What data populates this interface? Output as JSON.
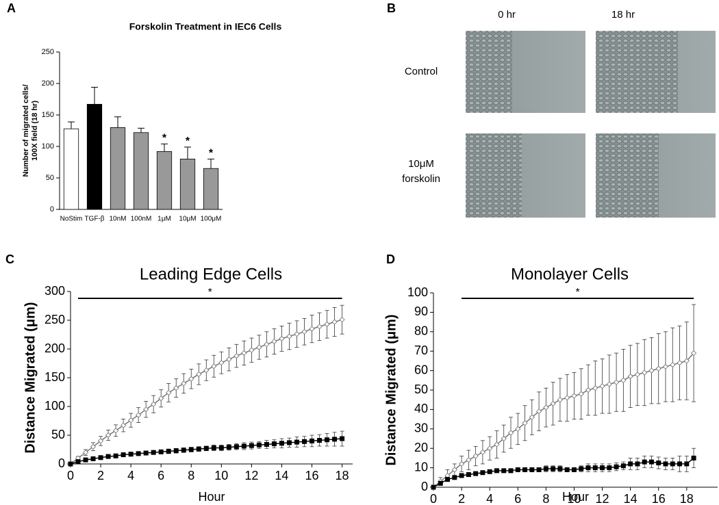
{
  "chart_data": [
    {
      "type": "bar",
      "panel": "A",
      "title": "Forskolin Treatment in IEC6 Cells",
      "ylabel": [
        "Number of migrated cells/",
        "100X field (18 hr)"
      ],
      "categories": [
        "NoStim",
        "TGF-β",
        "10nM",
        "100nM",
        "1μM",
        "10μM",
        "100μM"
      ],
      "values": [
        128,
        167,
        130,
        122,
        92,
        80,
        65
      ],
      "errors": [
        11,
        27,
        17,
        7,
        12,
        19,
        15
      ],
      "colors": [
        "#ffffff",
        "#000000",
        "#999999",
        "#999999",
        "#999999",
        "#999999",
        "#999999"
      ],
      "ylim": [
        0,
        250
      ],
      "yticks": [
        0,
        50,
        100,
        150,
        200,
        250
      ],
      "annotations": [
        {
          "text": "*",
          "category": "1μM"
        },
        {
          "text": "*",
          "category": "10μM"
        },
        {
          "text": "*",
          "category": "100μM"
        }
      ]
    },
    {
      "type": "line",
      "panel": "C",
      "title": "Leading Edge Cells",
      "xlabel": "Hour",
      "ylabel": "Distance Migrated (μm)",
      "x": [
        0,
        0.5,
        1,
        1.5,
        2,
        2.5,
        3,
        3.5,
        4,
        4.5,
        5,
        5.5,
        6,
        6.5,
        7,
        7.5,
        8,
        8.5,
        9,
        9.5,
        10,
        10.5,
        11,
        11.5,
        12,
        12.5,
        13,
        13.5,
        14,
        14.5,
        15,
        15.5,
        16,
        16.5,
        17,
        17.5,
        18
      ],
      "series": [
        {
          "color": "#777777",
          "marker": "diamond",
          "values": [
            0,
            10,
            20,
            30,
            40,
            50,
            58,
            67,
            76,
            85,
            95,
            104,
            114,
            124,
            132,
            140,
            148,
            156,
            163,
            170,
            176,
            182,
            188,
            193,
            198,
            203,
            208,
            213,
            218,
            222,
            226,
            230,
            235,
            239,
            243,
            247,
            251
          ],
          "errors": [
            0,
            3,
            5,
            7,
            8,
            9,
            10,
            11,
            12,
            13,
            14,
            15,
            15,
            16,
            16,
            17,
            17,
            18,
            18,
            19,
            19,
            20,
            20,
            21,
            21,
            21,
            22,
            22,
            22,
            23,
            23,
            23,
            24,
            24,
            24,
            25,
            25
          ]
        },
        {
          "color": "#000000",
          "marker": "square",
          "values": [
            0,
            4,
            7,
            9,
            11,
            13,
            14,
            16,
            17,
            18,
            19,
            20,
            21,
            22,
            23,
            24,
            25,
            26,
            27,
            28,
            28,
            29,
            30,
            31,
            32,
            33,
            34,
            35,
            36,
            37,
            38,
            39,
            40,
            41,
            42,
            43,
            44
          ],
          "errors": [
            0,
            1,
            1,
            2,
            2,
            2,
            2,
            3,
            3,
            3,
            3,
            3,
            3,
            4,
            4,
            4,
            4,
            4,
            4,
            5,
            5,
            5,
            5,
            6,
            6,
            6,
            7,
            7,
            8,
            8,
            9,
            9,
            10,
            10,
            11,
            12,
            13
          ]
        }
      ],
      "xlim": [
        0,
        18.7
      ],
      "xticks": [
        0,
        2,
        4,
        6,
        8,
        10,
        12,
        14,
        16,
        18
      ],
      "ylim": [
        0,
        300
      ],
      "yticks": [
        0,
        50,
        100,
        150,
        200,
        250,
        300
      ],
      "annotations": [
        {
          "text": "*",
          "x": [
            0.5,
            18
          ]
        }
      ]
    },
    {
      "type": "line",
      "panel": "D",
      "title": "Monolayer Cells",
      "xlabel": "Hour",
      "ylabel": "Distance Migrated (μm)",
      "x": [
        0,
        0.5,
        1,
        1.5,
        2,
        2.5,
        3,
        3.5,
        4,
        4.5,
        5,
        5.5,
        6,
        6.5,
        7,
        7.5,
        8,
        8.5,
        9,
        9.5,
        10,
        10.5,
        11,
        11.5,
        12,
        12.5,
        13,
        13.5,
        14,
        14.5,
        15,
        15.5,
        16,
        16.5,
        17,
        17.5,
        18,
        18.5
      ],
      "series": [
        {
          "color": "#777777",
          "marker": "diamond",
          "values": [
            0,
            3,
            6,
            9,
            12,
            14,
            16,
            18,
            20,
            22,
            25,
            28,
            30,
            33,
            36,
            39,
            41,
            43,
            45,
            46,
            47,
            48,
            50,
            51,
            52,
            53,
            54,
            55,
            57,
            58,
            59,
            60,
            61,
            62,
            63,
            64,
            65,
            69
          ],
          "errors": [
            0,
            2,
            3,
            3,
            4,
            5,
            5,
            6,
            6,
            7,
            7,
            8,
            8,
            9,
            9,
            10,
            10,
            11,
            11,
            12,
            12,
            13,
            13,
            14,
            14,
            15,
            15,
            16,
            16,
            16,
            17,
            17,
            18,
            18,
            19,
            19,
            20,
            25
          ]
        },
        {
          "color": "#000000",
          "marker": "square",
          "values": [
            0,
            2,
            4,
            5,
            6,
            6.5,
            7,
            7.5,
            8,
            8.5,
            8.5,
            8.5,
            9,
            9,
            9,
            9,
            9.5,
            9.5,
            9.5,
            9,
            9,
            9.5,
            10,
            10,
            10,
            10,
            10.5,
            11,
            12,
            12,
            13,
            13,
            12.5,
            12,
            12,
            12,
            12,
            15
          ],
          "errors": [
            0,
            1,
            1,
            1,
            1,
            1,
            1,
            1,
            1,
            1,
            1,
            1,
            1,
            1,
            1,
            1,
            1.5,
            1.5,
            1.5,
            1,
            1,
            1.5,
            2,
            2,
            2,
            2,
            2,
            2,
            3,
            3,
            3,
            3,
            3,
            3,
            3,
            4,
            4,
            5
          ]
        }
      ],
      "xlim": [
        0,
        20.2
      ],
      "xticks": [
        0,
        2,
        4,
        6,
        8,
        10,
        12,
        14,
        16,
        18
      ],
      "ylim": [
        0,
        100
      ],
      "yticks": [
        0,
        10,
        20,
        30,
        40,
        50,
        60,
        70,
        80,
        90,
        100
      ],
      "annotations": [
        {
          "text": "*",
          "x": [
            2,
            18.5
          ]
        }
      ]
    }
  ],
  "image_panel": {
    "panel": "B",
    "columns": [
      "0 hr",
      "18 hr"
    ],
    "rows": [
      [
        "Control"
      ],
      [
        "10μM",
        "forskolin"
      ]
    ]
  }
}
